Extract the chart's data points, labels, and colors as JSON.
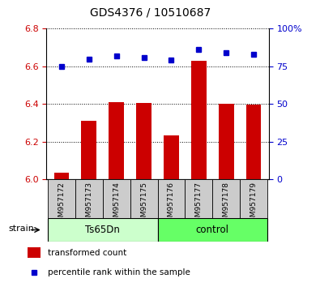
{
  "title": "GDS4376 / 10510687",
  "samples": [
    "GSM957172",
    "GSM957173",
    "GSM957174",
    "GSM957175",
    "GSM957176",
    "GSM957177",
    "GSM957178",
    "GSM957179"
  ],
  "bar_values": [
    6.035,
    6.31,
    6.41,
    6.405,
    6.235,
    6.63,
    6.4,
    6.395
  ],
  "dot_values": [
    75,
    80,
    82,
    81,
    79,
    86,
    84,
    83
  ],
  "ylim_left": [
    6.0,
    6.8
  ],
  "ylim_right": [
    0,
    100
  ],
  "yticks_left": [
    6.0,
    6.2,
    6.4,
    6.6,
    6.8
  ],
  "yticks_right": [
    0,
    25,
    50,
    75,
    100
  ],
  "bar_color": "#cc0000",
  "dot_color": "#0000cc",
  "grid_color": "#000000",
  "tick_label_color_left": "#cc0000",
  "tick_label_color_right": "#0000cc",
  "group1_label": "Ts65Dn",
  "group2_label": "control",
  "group1_indices": [
    0,
    1,
    2,
    3
  ],
  "group2_indices": [
    4,
    5,
    6,
    7
  ],
  "group1_color": "#ccffcc",
  "group2_color": "#66ff66",
  "strain_label": "strain",
  "legend_bar_label": "transformed count",
  "legend_dot_label": "percentile rank within the sample",
  "sample_bg_color": "#cccccc"
}
